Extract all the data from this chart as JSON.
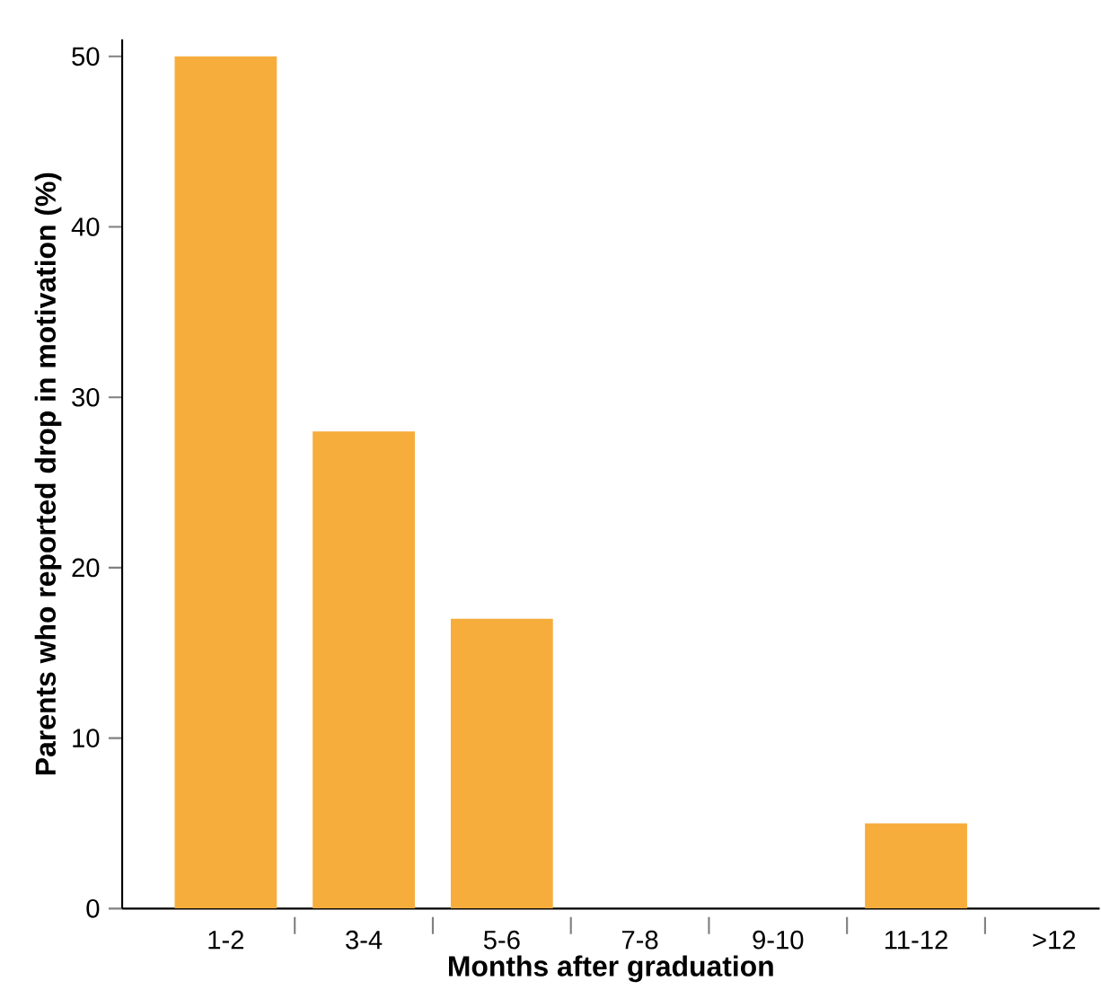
{
  "chart_data": {
    "type": "bar",
    "xlabel": "Months after graduation",
    "ylabel": "Parents who reported drop in motivation (%)",
    "categories": [
      "1-2",
      "3-4",
      "5-6",
      "7-8",
      "9-10",
      "11-12",
      ">12"
    ],
    "values": [
      50,
      28,
      17,
      0,
      0,
      5,
      0
    ],
    "color": "#f6ad3c",
    "ylim": [
      0,
      51
    ],
    "yticks": [
      0,
      10,
      20,
      30,
      40,
      50
    ],
    "grid": false
  }
}
